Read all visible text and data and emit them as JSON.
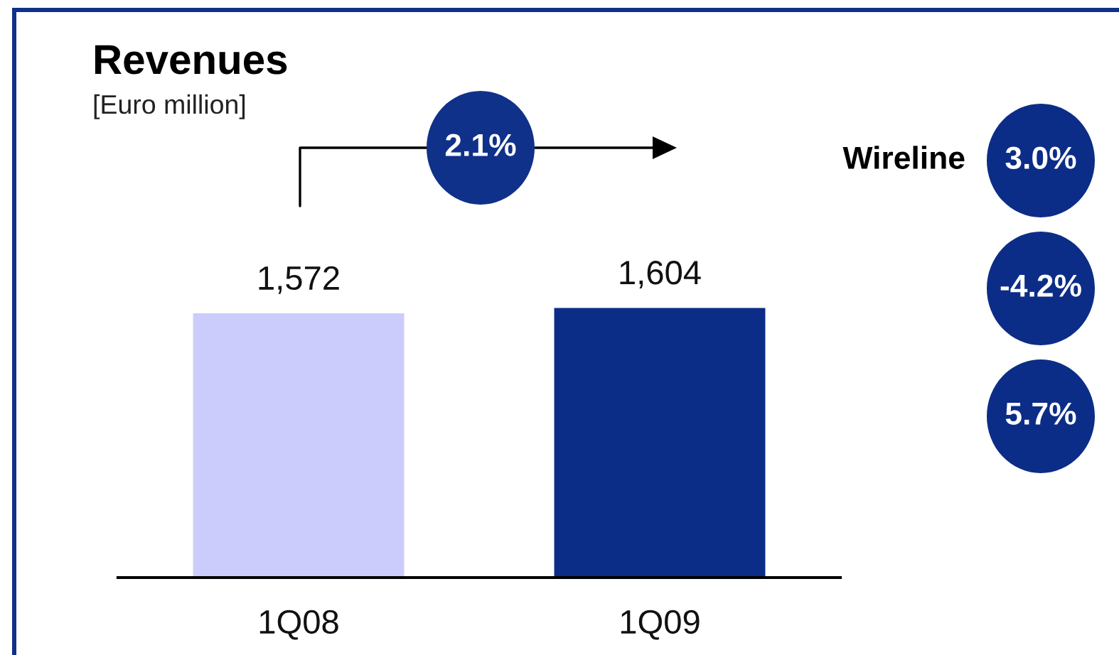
{
  "chart_data": [
    {
      "type": "bar",
      "title": "Revenues",
      "subtitle": "[Euro million]",
      "categories": [
        "1Q08",
        "1Q09"
      ],
      "values": [
        1572,
        1604
      ],
      "colors": [
        "#ccccfc",
        "#0c2d87"
      ],
      "value_labels": [
        "1,572",
        "1,604"
      ],
      "tick_labels": "x",
      "annotations": [
        "2.1%"
      ]
    },
    {
      "type": "other",
      "categories": [
        "Wireline",
        null,
        null
      ],
      "value_labels": [
        "3.0%",
        "-4.2%",
        "5.7%"
      ],
      "color": "#0c2d87"
    }
  ]
}
